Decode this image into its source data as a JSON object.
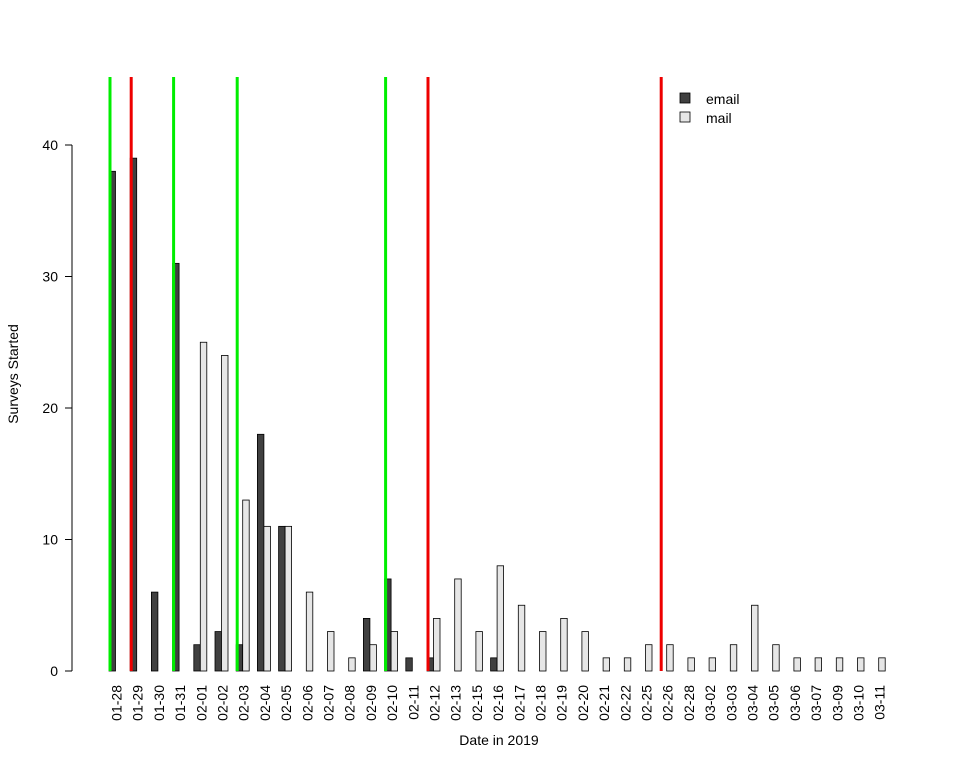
{
  "chart_data": {
    "type": "bar",
    "xlabel": "Date in 2019",
    "ylabel": "Surveys Started",
    "ylim": [
      0,
      45
    ],
    "yticks": [
      0,
      10,
      20,
      30,
      40
    ],
    "categories": [
      "01-28",
      "01-29",
      "01-30",
      "01-31",
      "02-01",
      "02-02",
      "02-03",
      "02-04",
      "02-05",
      "02-06",
      "02-07",
      "02-08",
      "02-09",
      "02-10",
      "02-11",
      "02-12",
      "02-13",
      "02-15",
      "02-16",
      "02-17",
      "02-18",
      "02-19",
      "02-20",
      "02-21",
      "02-22",
      "02-25",
      "02-26",
      "02-28",
      "03-02",
      "03-03",
      "03-04",
      "03-05",
      "03-06",
      "03-07",
      "03-09",
      "03-10",
      "03-11"
    ],
    "series": [
      {
        "name": "email",
        "color": "#404040",
        "values": [
          38,
          39,
          6,
          31,
          2,
          3,
          2,
          18,
          11,
          0,
          0,
          0,
          4,
          7,
          1,
          1,
          0,
          0,
          1,
          0,
          0,
          0,
          0,
          0,
          0,
          0,
          0,
          0,
          0,
          0,
          0,
          0,
          0,
          0,
          0,
          0,
          0
        ]
      },
      {
        "name": "mail",
        "color": "#e6e6e6",
        "values": [
          0,
          0,
          0,
          0,
          25,
          24,
          13,
          11,
          11,
          6,
          3,
          1,
          2,
          3,
          0,
          4,
          7,
          3,
          8,
          5,
          3,
          4,
          3,
          1,
          1,
          2,
          2,
          1,
          1,
          2,
          5,
          2,
          1,
          1,
          1,
          1,
          1
        ]
      }
    ],
    "legend": {
      "position": "top-right",
      "entries": [
        "email",
        "mail"
      ]
    },
    "vlines": [
      {
        "x": "01-28",
        "color": "#00ee00"
      },
      {
        "x": "01-29",
        "color": "#ee0000"
      },
      {
        "x": "01-31",
        "color": "#00ee00"
      },
      {
        "x": "02-03",
        "color": "#00ee00"
      },
      {
        "x": "02-10",
        "color": "#00ee00"
      },
      {
        "x": "02-12",
        "color": "#ee0000"
      },
      {
        "x": "02-26",
        "color": "#ee0000"
      }
    ],
    "grid": false
  }
}
